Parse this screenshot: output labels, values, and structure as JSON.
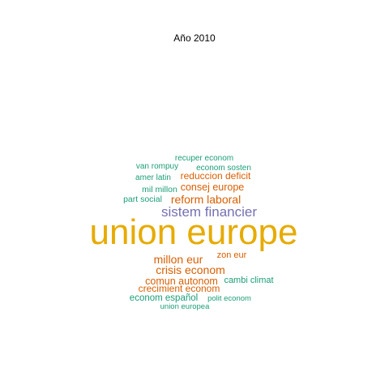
{
  "title": "Año 2010",
  "colors": {
    "teal": "#1b9e77",
    "orange": "#d95f02",
    "purple": "#7570b3",
    "gold": "#e6ab02"
  },
  "words": [
    {
      "text": "union europe",
      "color": "gold"
    },
    {
      "text": "sistem financier",
      "color": "purple"
    },
    {
      "text": "reform laboral",
      "color": "orange"
    },
    {
      "text": "millon eur",
      "color": "orange"
    },
    {
      "text": "crisis econom",
      "color": "orange"
    },
    {
      "text": "comun autonom",
      "color": "orange"
    },
    {
      "text": "consej europe",
      "color": "orange"
    },
    {
      "text": "crecimient econom",
      "color": "orange"
    },
    {
      "text": "reduccion deficit",
      "color": "orange"
    },
    {
      "text": "zon eur",
      "color": "orange"
    },
    {
      "text": "econom español",
      "color": "teal"
    },
    {
      "text": "cambi climat",
      "color": "teal"
    },
    {
      "text": "mil millon",
      "color": "teal"
    },
    {
      "text": "part social",
      "color": "teal"
    },
    {
      "text": "amer latin",
      "color": "teal"
    },
    {
      "text": "recuper econom",
      "color": "teal"
    },
    {
      "text": "van rompuy",
      "color": "teal"
    },
    {
      "text": "econom sosten",
      "color": "teal"
    },
    {
      "text": "polit econom",
      "color": "teal"
    },
    {
      "text": "union europea",
      "color": "teal"
    }
  ]
}
